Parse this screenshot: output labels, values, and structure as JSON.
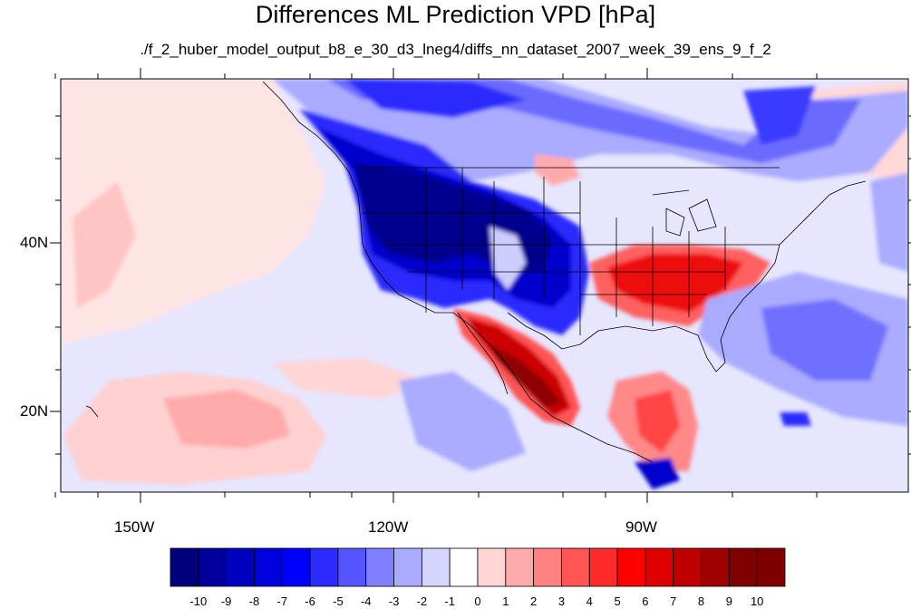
{
  "title": "Differences ML Prediction VPD [hPa]",
  "subtitle": "./f_2_huber_model_output_b8_e_30_d3_lneg4/diffs_nn_dataset_2007_week_39_ens_9_f_2",
  "axes": {
    "lat_labels": [
      "40N",
      "20N"
    ],
    "lon_labels": [
      "150W",
      "120W",
      "90W"
    ]
  },
  "colorbar": {
    "labels": [
      "-10",
      "-9",
      "-8",
      "-7",
      "-6",
      "-5",
      "-4",
      "-3",
      "-2",
      "-1",
      "0",
      "1",
      "2",
      "3",
      "4",
      "5",
      "6",
      "7",
      "8",
      "9",
      "10"
    ],
    "colors": [
      "#00007f",
      "#00009f",
      "#0000bf",
      "#0000df",
      "#0000ff",
      "#2b2bff",
      "#5555ff",
      "#8080ff",
      "#aaaaff",
      "#d5d5ff",
      "#ffffff",
      "#ffd5d5",
      "#ffaaaa",
      "#ff8080",
      "#ff5555",
      "#ff2b2b",
      "#ff0000",
      "#df0000",
      "#bf0000",
      "#9f0000",
      "#7f0000"
    ]
  }
}
